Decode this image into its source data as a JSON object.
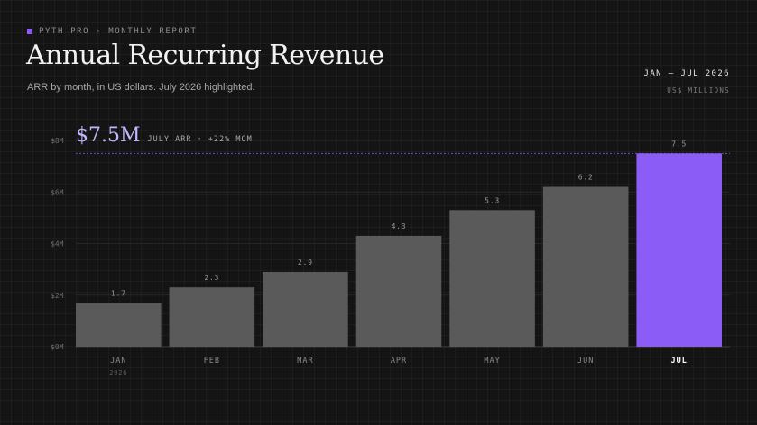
{
  "header": {
    "eyebrow": "PYTH PRO · MONTHLY REPORT",
    "title": "Annual Recurring Revenue",
    "subtitle": "ARR by month, in US dollars. July 2026 highlighted.",
    "range": "JAN – JUL 2026",
    "units": "US$ MILLIONS"
  },
  "colors": {
    "bar": "#5a5a5a",
    "highlight": "#8b5cf6",
    "accent": "#8b5cf6"
  },
  "chart_data": {
    "type": "bar",
    "categories": [
      "JAN",
      "FEB",
      "MAR",
      "APR",
      "MAY",
      "JUN",
      "JUL"
    ],
    "year_label": "2026",
    "values": [
      1.7,
      2.3,
      2.9,
      4.3,
      5.3,
      6.2,
      7.5
    ],
    "value_labels": [
      "1.7",
      "2.3",
      "2.9",
      "4.3",
      "5.3",
      "6.2",
      "7.5"
    ],
    "highlight_index": 6,
    "ylim": [
      0,
      8
    ],
    "yticks": [
      0,
      2,
      4,
      6,
      8
    ],
    "ytick_labels": [
      "$0M",
      "$2M",
      "$4M",
      "$6M",
      "$8M"
    ],
    "reference_line": 7.5,
    "callout": {
      "value": "$7.5M",
      "text": "JULY ARR · +22% MOM"
    },
    "grid": true
  }
}
